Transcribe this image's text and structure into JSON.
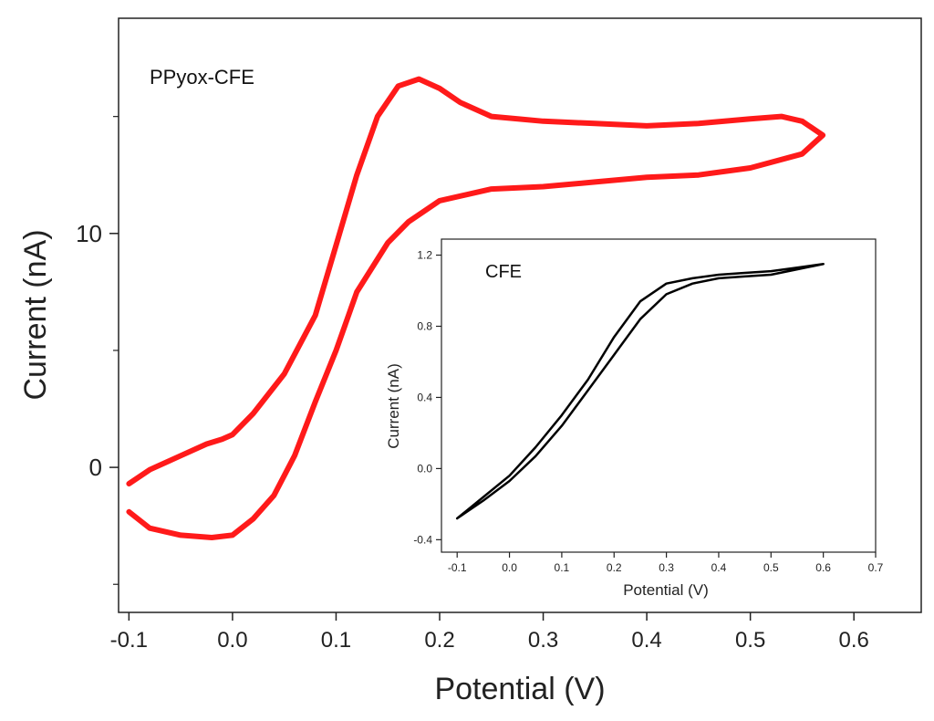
{
  "chart_data": [
    {
      "type": "line",
      "title": "",
      "xlabel": "Potential (V)",
      "ylabel": "Current (nA)",
      "xlim": [
        -0.11,
        0.665
      ],
      "ylim": [
        -6.2,
        19.2
      ],
      "xticks": [
        -0.1,
        0.0,
        0.1,
        0.2,
        0.3,
        0.4,
        0.5,
        0.6
      ],
      "xtick_labels": [
        "-0.1",
        "0.0",
        "0.1",
        "0.2",
        "0.3",
        "0.4",
        "0.5",
        "0.6"
      ],
      "yticks_labeled": [
        0,
        10
      ],
      "ytick_labels": [
        "0",
        "10"
      ],
      "yticks_minor": [
        -5,
        5,
        15
      ],
      "annotation": "PPyox-CFE",
      "grid": false,
      "series": [
        {
          "name": "PPyox-CFE",
          "color": "#ff1a1a",
          "x": [
            -0.1,
            -0.08,
            -0.05,
            -0.025,
            -0.01,
            0.0,
            0.02,
            0.05,
            0.08,
            0.1,
            0.12,
            0.14,
            0.16,
            0.18,
            0.2,
            0.22,
            0.25,
            0.3,
            0.35,
            0.4,
            0.45,
            0.5,
            0.53,
            0.55,
            0.57,
            0.55,
            0.5,
            0.45,
            0.4,
            0.35,
            0.3,
            0.25,
            0.2,
            0.17,
            0.15,
            0.12,
            0.1,
            0.08,
            0.06,
            0.04,
            0.02,
            0.0,
            -0.02,
            -0.05,
            -0.08,
            -0.1
          ],
          "y": [
            -0.7,
            -0.1,
            0.5,
            1.0,
            1.2,
            1.4,
            2.3,
            4.0,
            6.5,
            9.5,
            12.5,
            15.0,
            16.3,
            16.6,
            16.2,
            15.6,
            15.0,
            14.8,
            14.7,
            14.6,
            14.7,
            14.9,
            15.0,
            14.8,
            14.2,
            13.4,
            12.8,
            12.5,
            12.4,
            12.2,
            12.0,
            11.9,
            11.4,
            10.5,
            9.6,
            7.5,
            5.0,
            2.8,
            0.5,
            -1.2,
            -2.2,
            -2.9,
            -3.0,
            -2.9,
            -2.6,
            -1.9
          ]
        }
      ]
    },
    {
      "type": "line",
      "title": "",
      "xlabel": "Potential (V)",
      "ylabel": "Current (nA)",
      "xlim": [
        -0.13,
        0.7
      ],
      "ylim": [
        -0.47,
        1.29
      ],
      "xticks": [
        -0.1,
        0.0,
        0.1,
        0.2,
        0.3,
        0.4,
        0.5,
        0.6,
        0.7
      ],
      "xtick_labels": [
        "-0.1",
        "0.0",
        "0.1",
        "0.2",
        "0.3",
        "0.4",
        "0.5",
        "0.6",
        "0.7"
      ],
      "yticks": [
        -0.4,
        0.0,
        0.4,
        0.8,
        1.2
      ],
      "ytick_labels": [
        "-0.4",
        "0.0",
        "0.4",
        "0.8",
        "1.2"
      ],
      "annotation": "CFE",
      "grid": false,
      "series": [
        {
          "name": "CFE",
          "color": "#000000",
          "x": [
            -0.1,
            -0.05,
            0.0,
            0.05,
            0.1,
            0.15,
            0.2,
            0.25,
            0.3,
            0.35,
            0.4,
            0.45,
            0.5,
            0.55,
            0.6,
            0.55,
            0.5,
            0.45,
            0.4,
            0.35,
            0.3,
            0.25,
            0.2,
            0.15,
            0.1,
            0.05,
            0.0,
            -0.05,
            -0.1
          ],
          "y": [
            -0.28,
            -0.16,
            -0.04,
            0.12,
            0.3,
            0.5,
            0.74,
            0.94,
            1.04,
            1.07,
            1.09,
            1.1,
            1.11,
            1.13,
            1.15,
            1.12,
            1.09,
            1.08,
            1.07,
            1.04,
            0.98,
            0.84,
            0.64,
            0.44,
            0.24,
            0.07,
            -0.07,
            -0.18,
            -0.28
          ]
        }
      ]
    }
  ]
}
